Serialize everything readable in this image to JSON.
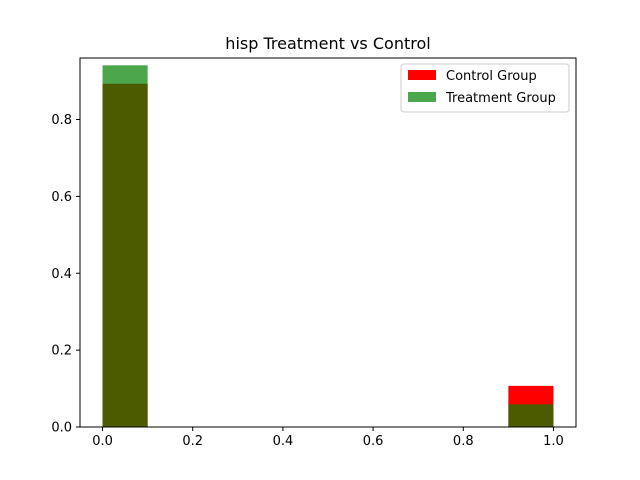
{
  "chart_data": {
    "type": "bar",
    "chart_subtype": "overlaid-histogram",
    "title": "hisp Treatment vs Control",
    "xlabel": "",
    "ylabel": "",
    "xlim": [
      -0.05,
      1.05
    ],
    "ylim": [
      0,
      0.96
    ],
    "x_ticks": [
      0.0,
      0.2,
      0.4,
      0.6,
      0.8,
      1.0
    ],
    "x_tick_labels": [
      "0.0",
      "0.2",
      "0.4",
      "0.6",
      "0.8",
      "1.0"
    ],
    "y_ticks": [
      0.0,
      0.2,
      0.4,
      0.6,
      0.8
    ],
    "y_tick_labels": [
      "0.0",
      "0.2",
      "0.4",
      "0.6",
      "0.8"
    ],
    "bins": [
      {
        "start": 0.0,
        "end": 0.1
      },
      {
        "start": 0.9,
        "end": 1.0
      }
    ],
    "series": [
      {
        "name": "Control Group",
        "color": "#ff0000",
        "opacity": 1.0,
        "values": [
          0.893,
          0.107
        ]
      },
      {
        "name": "Treatment Group",
        "color": "#008000",
        "opacity": 0.7,
        "values": [
          0.941,
          0.059
        ]
      }
    ],
    "legend_position": "top-right"
  }
}
